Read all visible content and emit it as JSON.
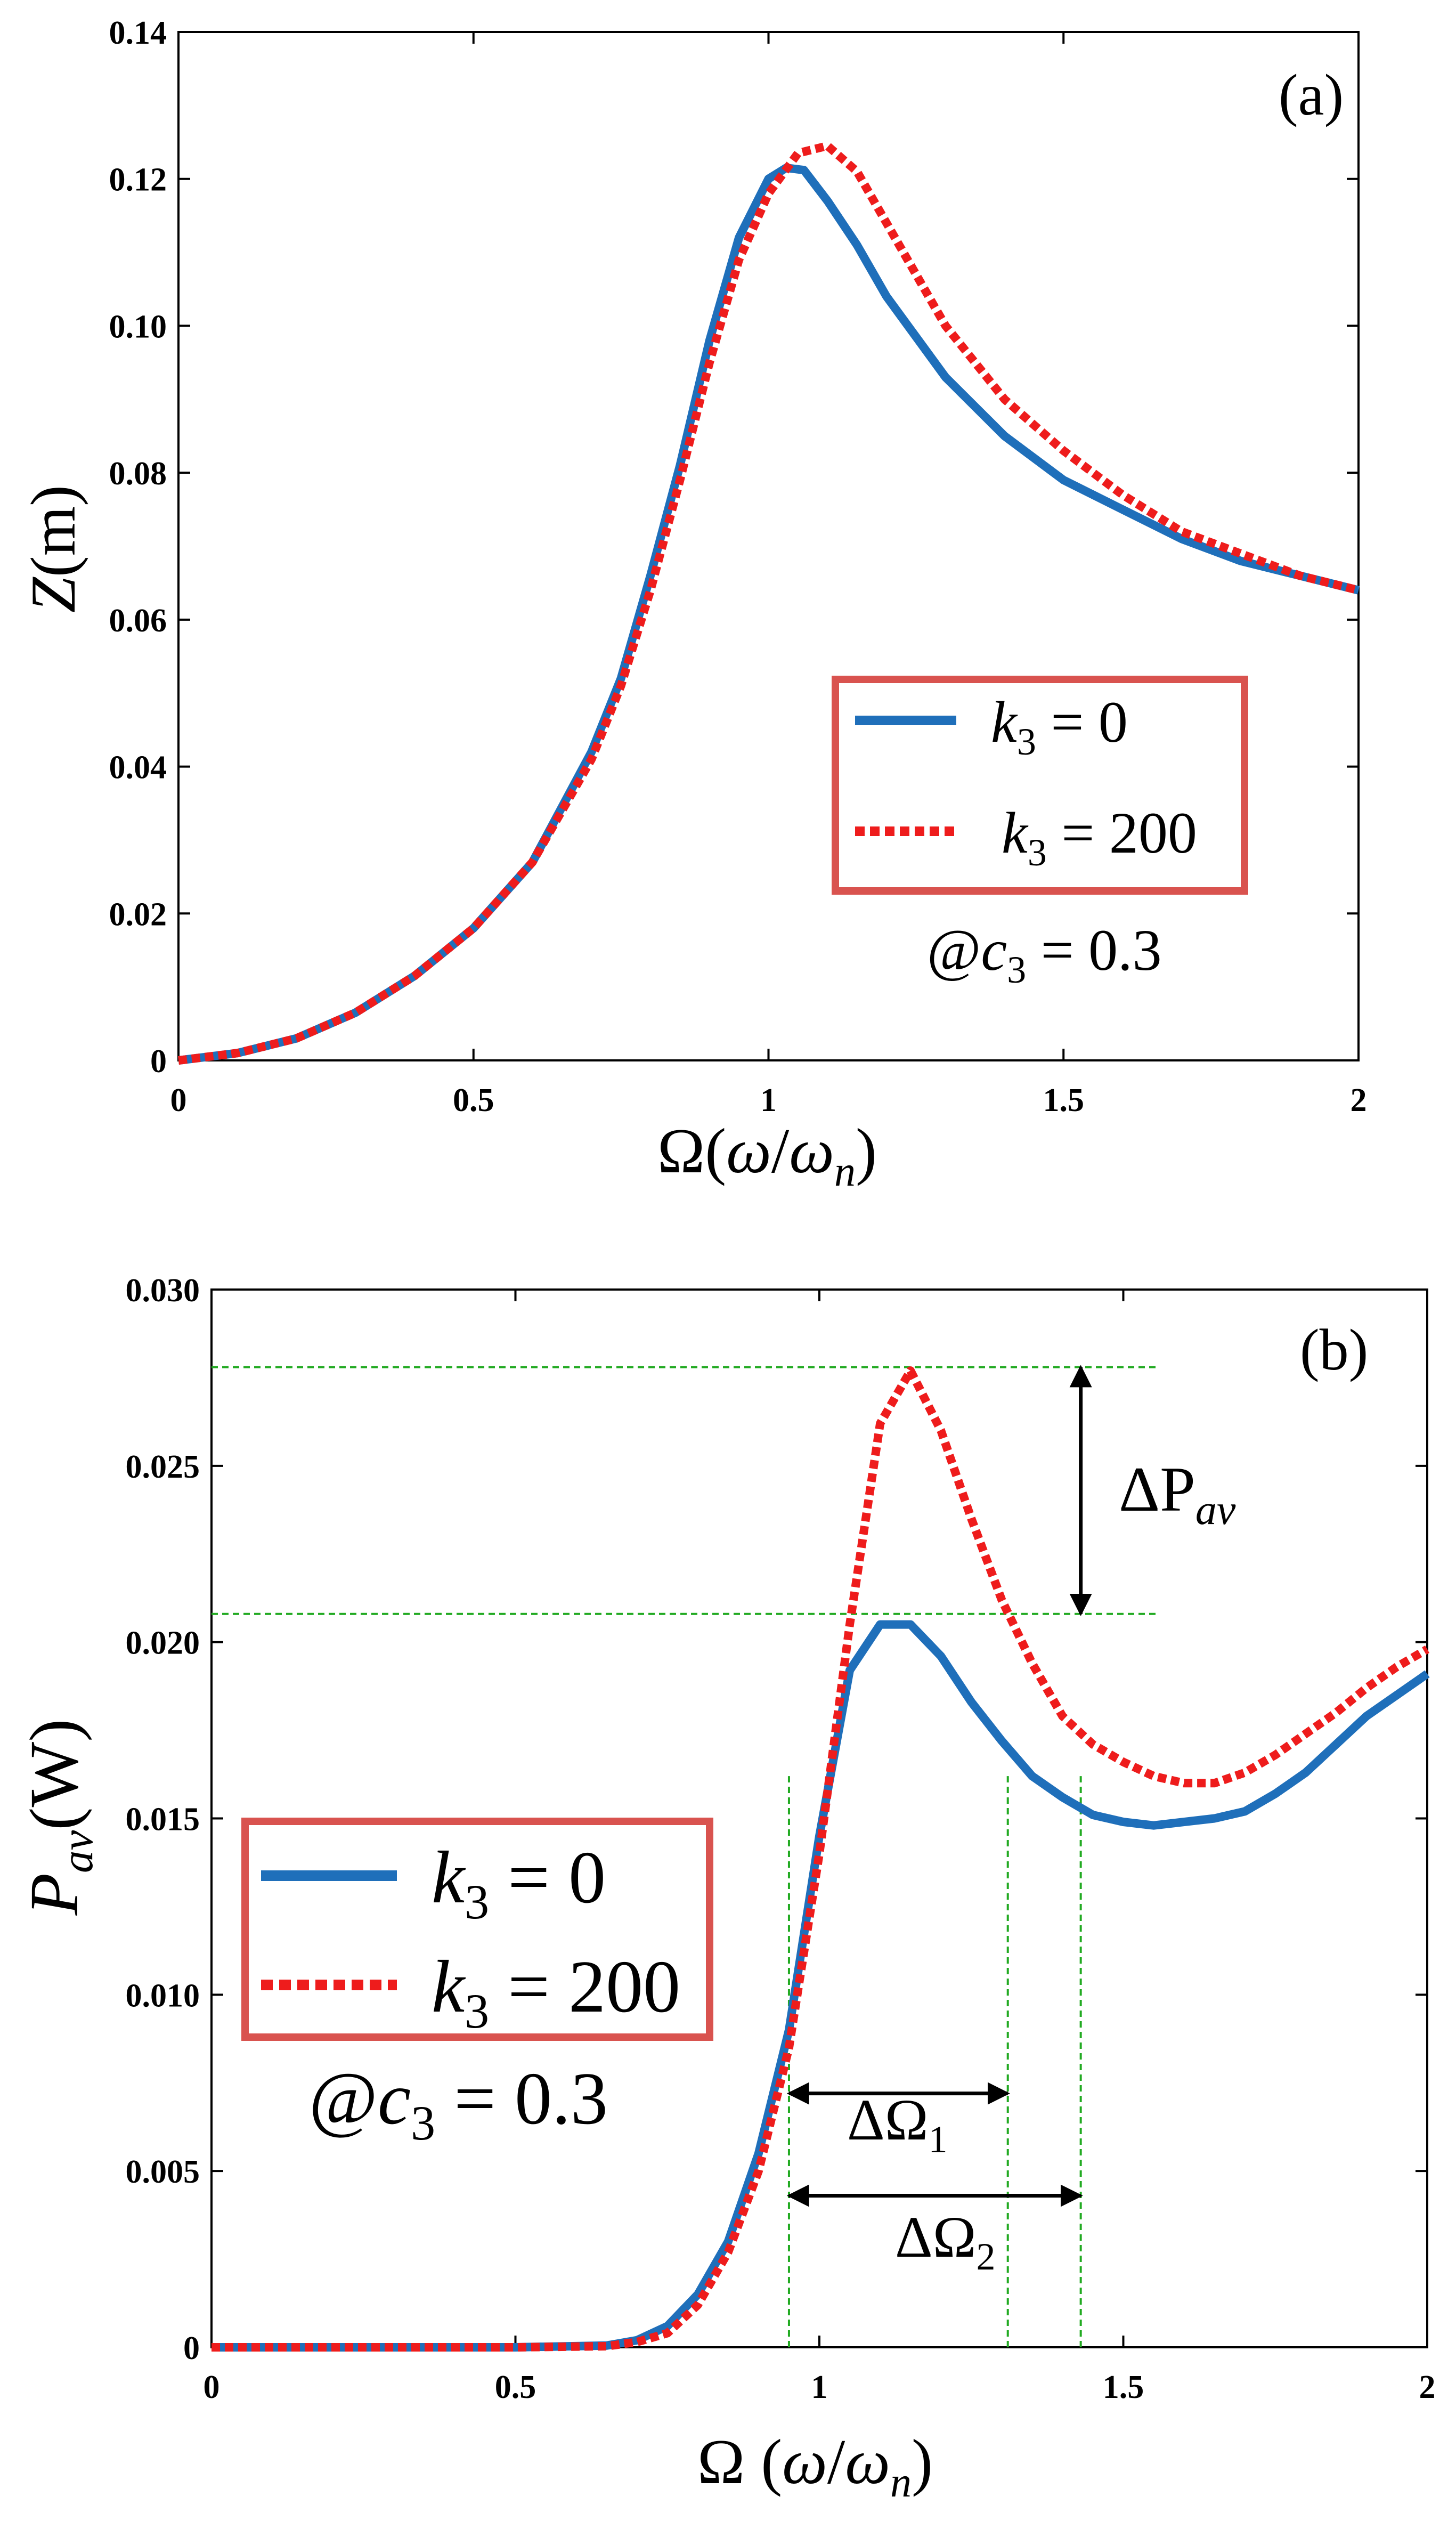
{
  "chart_data": [
    {
      "type": "line",
      "panel_label": "(a)",
      "xlabel": "Ω(ω/ω_n)",
      "ylabel": "Z(m)",
      "xlim": [
        0,
        2
      ],
      "ylim": [
        0,
        0.14
      ],
      "x_ticks": [
        0,
        0.5,
        1,
        1.5,
        2
      ],
      "x_tick_labels": [
        "0",
        "0.5",
        "1",
        "1.5",
        "2"
      ],
      "y_ticks": [
        0,
        0.02,
        0.04,
        0.06,
        0.08,
        0.1,
        0.12,
        0.14
      ],
      "y_tick_labels": [
        "0",
        "0.02",
        "0.04",
        "0.06",
        "0.08",
        "0.10",
        "0.12",
        "0.14"
      ],
      "legend": {
        "entries": [
          {
            "symbol": "k",
            "sub": "3",
            "expr": " = 0"
          },
          {
            "symbol": "k",
            "sub": "3",
            "expr": " = 200"
          }
        ],
        "location": "center-right"
      },
      "annotation": {
        "prefix": "@",
        "symbol": "c",
        "sub": "3",
        "expr": " = 0.3"
      },
      "series": [
        {
          "name": "k3 = 0",
          "color": "#1f6fba",
          "style": "solid",
          "x": [
            0,
            0.1,
            0.2,
            0.3,
            0.4,
            0.5,
            0.6,
            0.7,
            0.75,
            0.8,
            0.85,
            0.9,
            0.95,
            1.0,
            1.03,
            1.06,
            1.1,
            1.15,
            1.2,
            1.3,
            1.4,
            1.5,
            1.6,
            1.7,
            1.8,
            1.9,
            2.0
          ],
          "values": [
            0,
            0.001,
            0.003,
            0.0065,
            0.0115,
            0.018,
            0.027,
            0.042,
            0.052,
            0.066,
            0.081,
            0.098,
            0.112,
            0.12,
            0.1215,
            0.1212,
            0.117,
            0.111,
            0.104,
            0.093,
            0.085,
            0.079,
            0.075,
            0.071,
            0.068,
            0.066,
            0.064
          ]
        },
        {
          "name": "k3 = 200",
          "color": "#ee1c1c",
          "style": "dotted",
          "x": [
            0,
            0.1,
            0.2,
            0.3,
            0.4,
            0.5,
            0.6,
            0.7,
            0.75,
            0.8,
            0.85,
            0.9,
            0.95,
            1.0,
            1.05,
            1.1,
            1.15,
            1.2,
            1.3,
            1.4,
            1.5,
            1.6,
            1.7,
            1.8,
            1.9,
            2.0
          ],
          "values": [
            0,
            0.001,
            0.003,
            0.0065,
            0.0115,
            0.018,
            0.027,
            0.041,
            0.051,
            0.064,
            0.079,
            0.095,
            0.109,
            0.118,
            0.1235,
            0.1245,
            0.121,
            0.114,
            0.1,
            0.09,
            0.083,
            0.077,
            0.072,
            0.069,
            0.066,
            0.064
          ]
        }
      ]
    },
    {
      "type": "line",
      "panel_label": "(b)",
      "xlabel": "Ω (ω/ω_n)",
      "ylabel": "P_av(W)",
      "xlim": [
        0,
        2
      ],
      "ylim": [
        0,
        0.03
      ],
      "x_ticks": [
        0,
        0.5,
        1,
        1.5,
        2
      ],
      "x_tick_labels": [
        "0",
        "0.5",
        "1",
        "1.5",
        "2"
      ],
      "y_ticks": [
        0,
        0.005,
        0.01,
        0.015,
        0.02,
        0.025,
        0.03
      ],
      "y_tick_labels": [
        "0",
        "0.005",
        "0.010",
        "0.015",
        "0.020",
        "0.025",
        "0.030"
      ],
      "legend": {
        "entries": [
          {
            "symbol": "k",
            "sub": "3",
            "expr": " = 0"
          },
          {
            "symbol": "k",
            "sub": "3",
            "expr": " = 200"
          }
        ],
        "location": "center-left"
      },
      "annotation": {
        "prefix": "@",
        "symbol": "c",
        "sub": "3",
        "expr": " = 0.3"
      },
      "series": [
        {
          "name": "k3 = 0",
          "color": "#1f6fba",
          "style": "solid",
          "x": [
            0,
            0.5,
            0.65,
            0.7,
            0.75,
            0.8,
            0.85,
            0.9,
            0.95,
            1.0,
            1.05,
            1.1,
            1.15,
            1.2,
            1.25,
            1.3,
            1.35,
            1.4,
            1.45,
            1.5,
            1.55,
            1.6,
            1.65,
            1.7,
            1.75,
            1.8,
            1.85,
            1.9,
            1.95,
            2.0
          ],
          "values": [
            0,
            0,
            5e-05,
            0.0002,
            0.0006,
            0.0015,
            0.003,
            0.0055,
            0.009,
            0.0145,
            0.0192,
            0.0205,
            0.0205,
            0.0196,
            0.0183,
            0.0172,
            0.0162,
            0.0156,
            0.0151,
            0.0149,
            0.0148,
            0.0149,
            0.015,
            0.0152,
            0.0157,
            0.0163,
            0.0171,
            0.0179,
            0.0185,
            0.0191
          ]
        },
        {
          "name": "k3 = 200",
          "color": "#ee1c1c",
          "style": "dotted",
          "x": [
            0,
            0.5,
            0.65,
            0.7,
            0.75,
            0.8,
            0.85,
            0.9,
            0.95,
            1.0,
            1.05,
            1.1,
            1.15,
            1.2,
            1.25,
            1.3,
            1.35,
            1.4,
            1.45,
            1.5,
            1.55,
            1.6,
            1.65,
            1.7,
            1.75,
            1.8,
            1.85,
            1.9,
            1.95,
            2.0
          ],
          "values": [
            0,
            0,
            3e-05,
            0.00015,
            0.0004,
            0.0012,
            0.0027,
            0.005,
            0.0085,
            0.014,
            0.0205,
            0.0262,
            0.0277,
            0.026,
            0.0235,
            0.0212,
            0.0194,
            0.0179,
            0.0171,
            0.0166,
            0.0162,
            0.016,
            0.016,
            0.0163,
            0.0168,
            0.0174,
            0.018,
            0.0187,
            0.0193,
            0.0198
          ]
        }
      ],
      "guides": {
        "horizontal_levels": [
          0.0278,
          0.0208
        ],
        "horizontal_x_end": 1.56,
        "vertical_x": [
          0.95,
          1.31,
          1.43
        ],
        "delta_p": {
          "x": 1.43,
          "y_from": 0.0208,
          "y_to": 0.0278,
          "label": "ΔP",
          "sub": "av"
        },
        "delta_omega_1": {
          "x_from": 0.95,
          "x_to": 1.31,
          "y": 0.0072,
          "label": "ΔΩ",
          "sub": "1"
        },
        "delta_omega_2": {
          "x_from": 0.95,
          "x_to": 1.43,
          "y": 0.0043,
          "label": "ΔΩ",
          "sub": "2"
        },
        "color": "#22aa22"
      }
    }
  ]
}
